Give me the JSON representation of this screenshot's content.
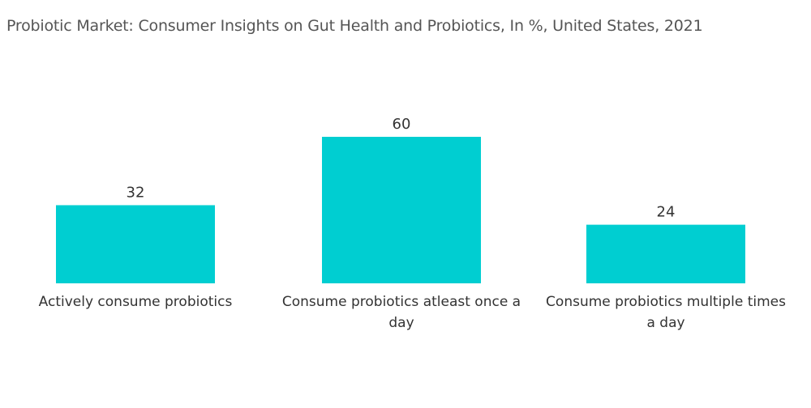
{
  "chart_data": {
    "type": "bar",
    "title": "Probiotic Market: Consumer Insights on Gut Health and Probiotics, In %, United States, 2021",
    "categories": [
      "Actively consume probiotics",
      "Consume probiotics atleast once a day",
      "Consume probiotics multiple times a day"
    ],
    "values": [
      32,
      60,
      24
    ],
    "data_labels": [
      "32",
      "60",
      "24"
    ],
    "xlabel": "",
    "ylabel": "",
    "ylim": [
      0,
      60
    ],
    "grid": false,
    "legend": "none",
    "bar_color": "#00ced1"
  }
}
